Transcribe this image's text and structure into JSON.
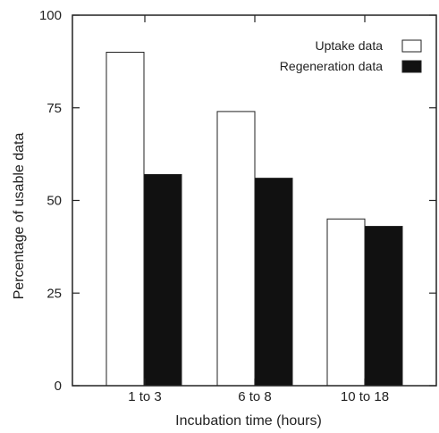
{
  "chart_data": {
    "type": "bar",
    "xlabel": "Incubation time (hours)",
    "ylabel": "Percentage of usable data",
    "categories": [
      "1 to 3",
      "6 to 8",
      "10 to 18"
    ],
    "ylim": [
      0,
      100
    ],
    "yticks": [
      0,
      25,
      50,
      75,
      100
    ],
    "yticks_labels": [
      "0",
      "25",
      "50",
      "75",
      "100"
    ],
    "grid": false,
    "legend_position": "top-right",
    "series": [
      {
        "name": "Uptake data",
        "values": [
          90,
          74,
          45
        ],
        "color": "#ffffff"
      },
      {
        "name": "Regeneration data",
        "values": [
          57,
          56,
          43
        ],
        "color": "#111111"
      }
    ]
  }
}
